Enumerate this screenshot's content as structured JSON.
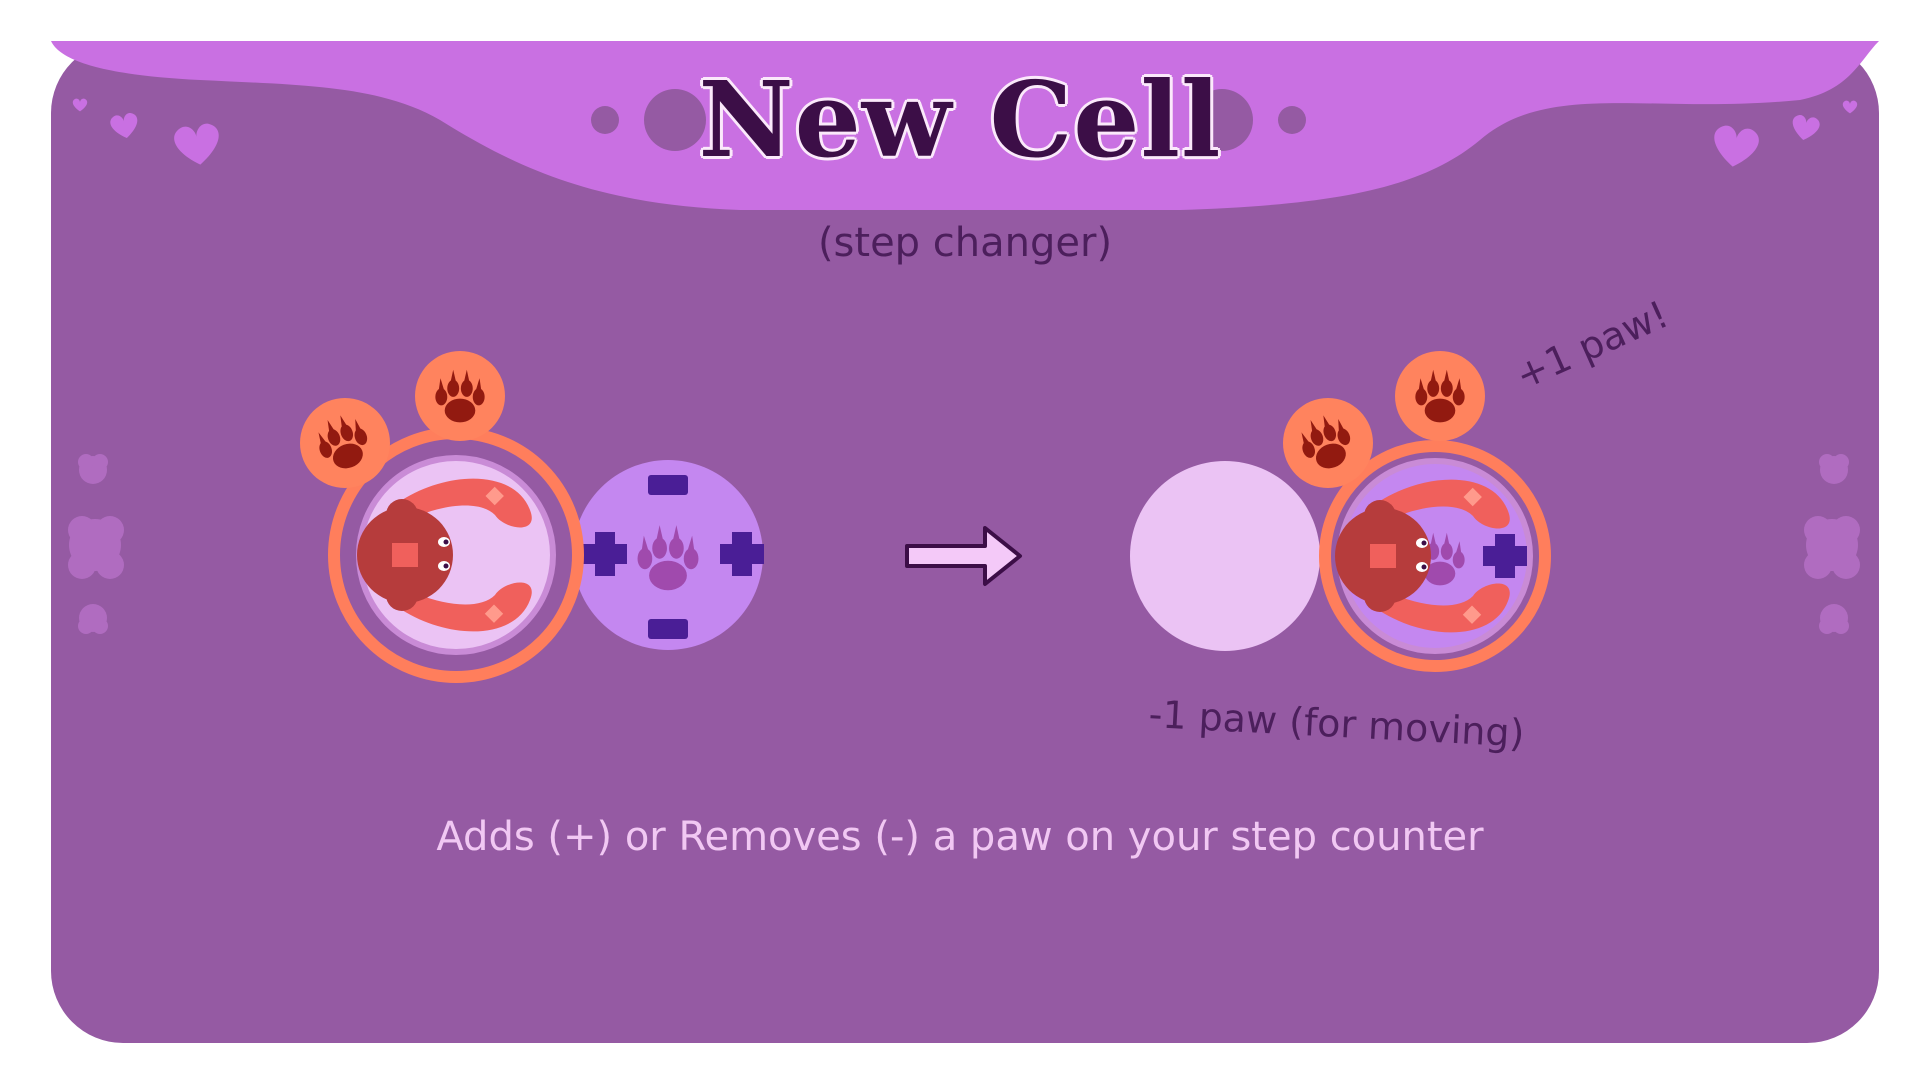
{
  "title": "New Cell",
  "subtitle": "(step changer)",
  "description": "Adds (+) or Removes (-) a paw on your step counter",
  "annotations": {
    "plus_paw": "+1 paw!",
    "minus_paw": "-1 paw (for moving)"
  },
  "icons": {
    "paw": "paw-icon",
    "plus": "plus-icon",
    "minus": "minus-icon",
    "arrow": "right-arrow-icon",
    "heart": "heart-icon",
    "creature": "red-crescent-creature"
  },
  "colors": {
    "card_background": "#955aa3",
    "banner": "#c970e2",
    "title_text": "#3c0e47",
    "ring": "#ff7e5c",
    "paw_badge": "#ff835e",
    "paw_mark": "#921a10",
    "step_changer_cell": "#c487f0",
    "step_changer_symbol": "#4a1e96",
    "empty_cell": "#ebc3f4",
    "creature_body": "#b63c3c",
    "creature_tail": "#f0605c",
    "description_text": "#f1c8f3"
  }
}
